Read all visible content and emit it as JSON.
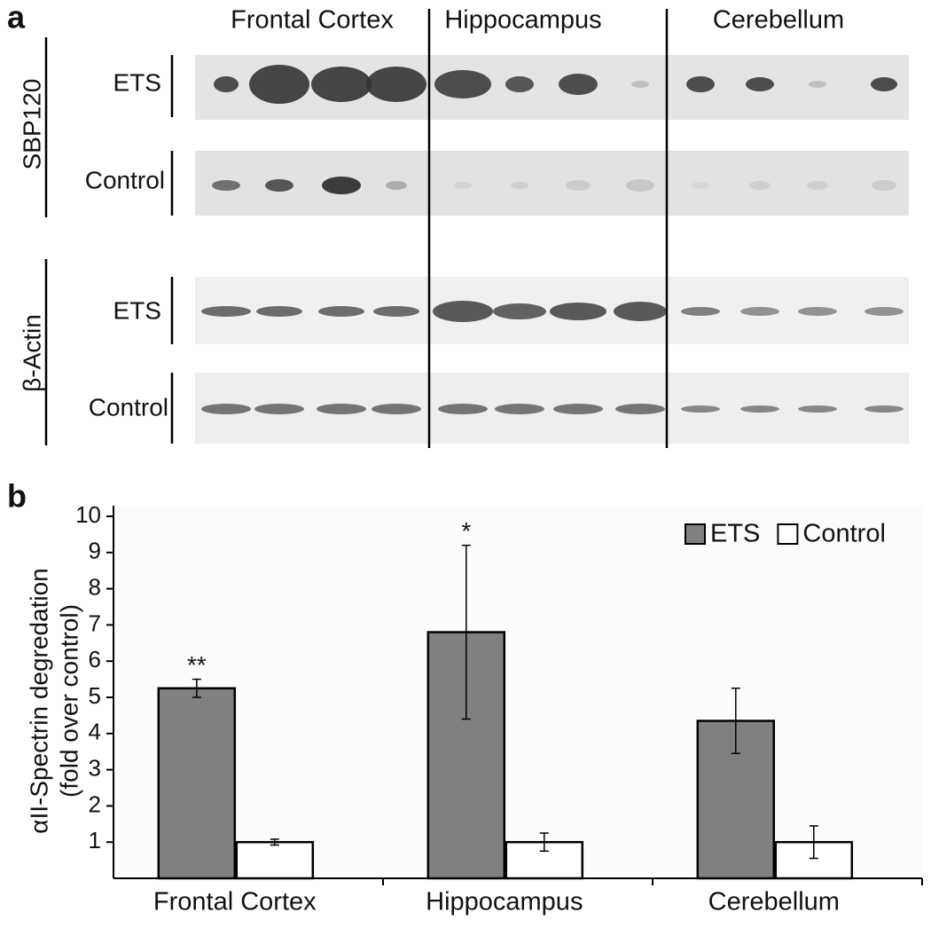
{
  "panel_a": {
    "label": "a",
    "regions": [
      "Frontal Cortex",
      "Hippocampus",
      "Cerebellum"
    ],
    "blots": [
      {
        "protein": "SBP120",
        "rows": [
          "ETS",
          "Control"
        ]
      },
      {
        "protein": "β-Actin",
        "rows": [
          "ETS",
          "Control"
        ]
      }
    ]
  },
  "chart_data": {
    "type": "bar",
    "panel_label": "b",
    "y_label": [
      "αII-Spectrin degredation",
      "(fold over control)"
    ],
    "categories": [
      "Frontal Cortex",
      "Hippocampus",
      "Cerebellum"
    ],
    "series": [
      {
        "name": "ETS",
        "color": "#808080",
        "values": [
          5.25,
          6.8,
          4.35
        ],
        "errors": [
          0.25,
          2.4,
          0.9
        ]
      },
      {
        "name": "Control",
        "color": "#ffffff",
        "values": [
          1,
          1,
          1
        ],
        "errors": [
          0.08,
          0.25,
          0.45
        ]
      }
    ],
    "annotations": [
      "**",
      "*",
      null
    ],
    "ylim": [
      0,
      10
    ],
    "yticks": [
      1,
      2,
      3,
      4,
      5,
      6,
      7,
      8,
      9,
      10
    ],
    "legend": "upper-right"
  }
}
